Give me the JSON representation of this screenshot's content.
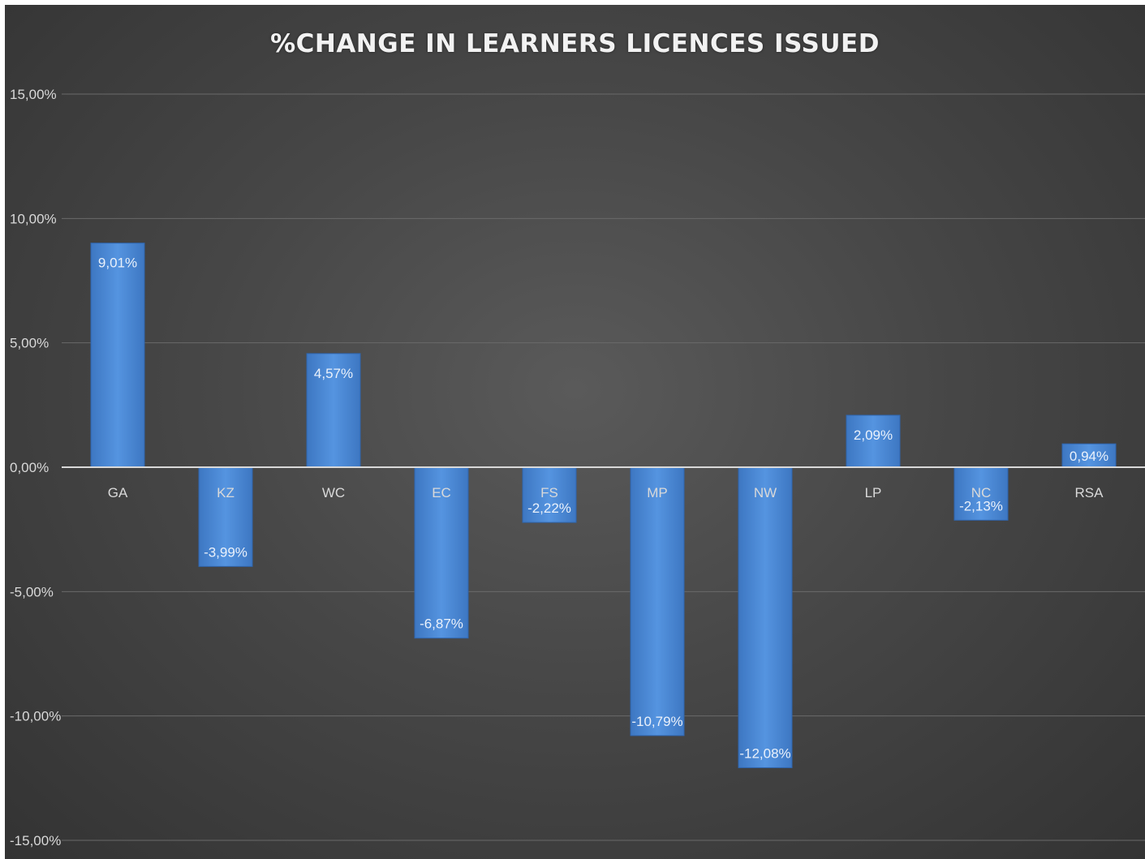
{
  "chart_data": {
    "type": "bar",
    "title": "%CHANGE IN LEARNERS LICENCES ISSUED",
    "categories": [
      "GA",
      "KZ",
      "WC",
      "EC",
      "FS",
      "MP",
      "NW",
      "LP",
      "NC",
      "RSA"
    ],
    "values": [
      9.01,
      -3.99,
      4.57,
      -6.87,
      -2.22,
      -10.79,
      -12.08,
      2.09,
      -2.13,
      0.94
    ],
    "data_labels": [
      "9,01%",
      "-3,99%",
      "4,57%",
      "-6,87%",
      "-2,22%",
      "-10,79%",
      "-12,08%",
      "2,09%",
      "-2,13%",
      "0,94%"
    ],
    "y_ticks": [
      15,
      10,
      5,
      0,
      -5,
      -10,
      -15
    ],
    "y_tick_labels": [
      "15,00%",
      "10,00%",
      "5,00%",
      "0,00%",
      "-5,00%",
      "-10,00%",
      "-15,00%"
    ],
    "ylim": [
      -15,
      15
    ],
    "grid": true,
    "legend": "none",
    "colors": {
      "bar": "#4a88d6",
      "bar_edge": "#2f65ad",
      "gridline": "#6a6a6a",
      "zero_line": "#d9d9d9",
      "background": "#474747"
    }
  }
}
